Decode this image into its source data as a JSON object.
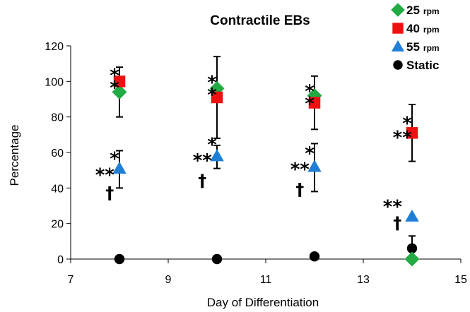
{
  "chart_data": {
    "type": "scatter",
    "title": "Contractile EBs",
    "xlabel": "Day of Differentiation",
    "ylabel": "Percentage",
    "xlim": [
      7,
      15
    ],
    "ylim": [
      0,
      120
    ],
    "xticks": [
      "7",
      "9",
      "11",
      "13",
      "15"
    ],
    "yticks": [
      "0",
      "20",
      "40",
      "60",
      "80",
      "100",
      "120"
    ],
    "grid": false,
    "legend_position": "top-right",
    "series": [
      {
        "name": "25",
        "unit": "rpm",
        "marker": "diamond",
        "color": "#22aa44",
        "points": [
          {
            "x": 8,
            "y": 94
          },
          {
            "x": 10,
            "y": 96
          },
          {
            "x": 12,
            "y": 92
          },
          {
            "x": 14,
            "y": 0
          }
        ]
      },
      {
        "name": "40",
        "unit": "rpm",
        "marker": "square",
        "color": "#ee1111",
        "points": [
          {
            "x": 8,
            "y": 100,
            "err_lo": 80,
            "err_hi": 108
          },
          {
            "x": 10,
            "y": 91,
            "err_lo": 68,
            "err_hi": 114
          },
          {
            "x": 12,
            "y": 88,
            "err_lo": 73,
            "err_hi": 103
          },
          {
            "x": 14,
            "y": 71,
            "err_lo": 55,
            "err_hi": 87
          }
        ]
      },
      {
        "name": "55",
        "unit": "rpm",
        "marker": "triangle",
        "color": "#1f7fd6",
        "points": [
          {
            "x": 8,
            "y": 51,
            "err_lo": 40,
            "err_hi": 61
          },
          {
            "x": 10,
            "y": 58,
            "err_lo": 51,
            "err_hi": 64
          },
          {
            "x": 12,
            "y": 52,
            "err_lo": 38,
            "err_hi": 65
          },
          {
            "x": 14,
            "y": 24
          }
        ]
      },
      {
        "name": "Static",
        "unit": "",
        "marker": "circle",
        "color": "#000000",
        "points": [
          {
            "x": 8,
            "y": 0
          },
          {
            "x": 10,
            "y": 0
          },
          {
            "x": 12,
            "y": 1.5,
            "err_lo": 0,
            "err_hi": 3
          },
          {
            "x": 14,
            "y": 6,
            "err_lo": 0,
            "err_hi": 13
          }
        ]
      }
    ],
    "annotations": [
      {
        "text": "*",
        "x": 7.9,
        "y": 100
      },
      {
        "text": "*",
        "x": 7.9,
        "y": 93
      },
      {
        "text": "*",
        "x": 9.9,
        "y": 96
      },
      {
        "text": "*",
        "x": 9.9,
        "y": 89
      },
      {
        "text": "*",
        "x": 11.9,
        "y": 91
      },
      {
        "text": "*",
        "x": 11.9,
        "y": 84
      },
      {
        "text": "*",
        "x": 13.9,
        "y": 73
      },
      {
        "text": "**",
        "x": 13.8,
        "y": 65
      },
      {
        "text": "*",
        "x": 7.9,
        "y": 53
      },
      {
        "text": "**",
        "x": 7.7,
        "y": 44
      },
      {
        "text": "†",
        "x": 7.8,
        "y": 34
      },
      {
        "text": "*",
        "x": 9.9,
        "y": 61
      },
      {
        "text": "**",
        "x": 9.7,
        "y": 52
      },
      {
        "text": "†",
        "x": 9.7,
        "y": 41
      },
      {
        "text": "*",
        "x": 11.9,
        "y": 56
      },
      {
        "text": "**",
        "x": 11.7,
        "y": 47
      },
      {
        "text": "†",
        "x": 11.7,
        "y": 36
      },
      {
        "text": "**",
        "x": 13.6,
        "y": 26
      },
      {
        "text": "†",
        "x": 13.7,
        "y": 17
      }
    ]
  }
}
